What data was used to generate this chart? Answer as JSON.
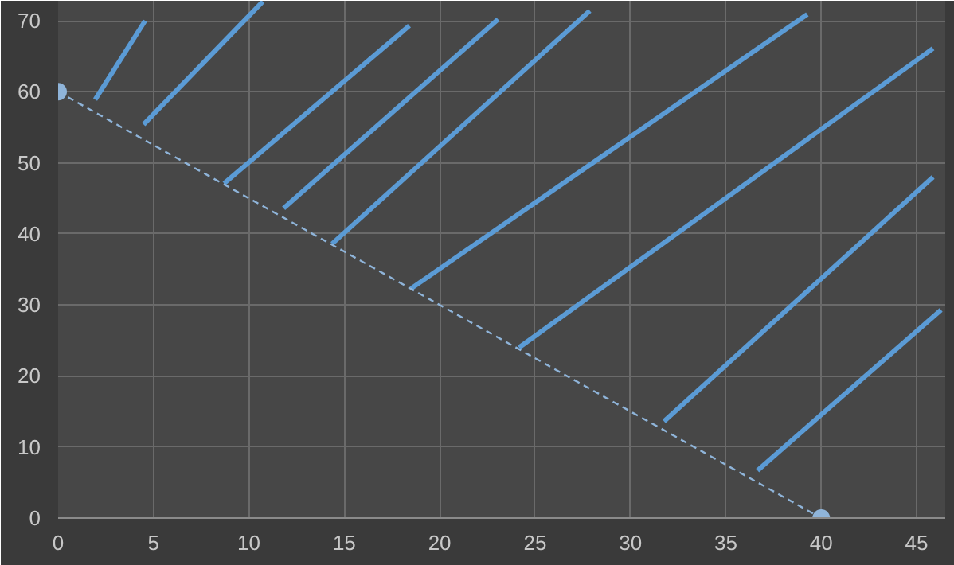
{
  "chart_data": {
    "type": "line",
    "xlim": [
      0,
      46.5
    ],
    "ylim": [
      0,
      72.8
    ],
    "xticks": [
      0,
      5,
      10,
      15,
      20,
      25,
      30,
      35,
      40,
      45
    ],
    "yticks": [
      0,
      10,
      20,
      30,
      40,
      50,
      60,
      70
    ],
    "grid": true,
    "marker": "none",
    "line_style": "solid",
    "series": [
      {
        "color": "#5b9bd5",
        "x": [
          1.94,
          4.56
        ],
        "values": [
          58.9,
          70.0
        ]
      },
      {
        "color": "#5b9bd5",
        "x": [
          4.48,
          10.73
        ],
        "values": [
          55.4,
          72.7
        ]
      },
      {
        "color": "#5b9bd5",
        "x": [
          8.7,
          18.41
        ],
        "values": [
          47.1,
          69.3
        ]
      },
      {
        "color": "#5b9bd5",
        "x": [
          11.82,
          23.06
        ],
        "values": [
          43.6,
          70.2
        ]
      },
      {
        "color": "#5b9bd5",
        "x": [
          14.36,
          27.87
        ],
        "values": [
          38.6,
          71.4
        ]
      },
      {
        "color": "#5b9bd5",
        "x": [
          18.5,
          39.27
        ],
        "values": [
          32.3,
          70.9
        ]
      },
      {
        "color": "#5b9bd5",
        "x": [
          24.16,
          45.86
        ],
        "values": [
          24.0,
          66.1
        ]
      },
      {
        "color": "#5b9bd5",
        "x": [
          31.76,
          45.86
        ],
        "values": [
          13.6,
          48.0
        ]
      },
      {
        "color": "#5b9bd5",
        "x": [
          36.66,
          46.28
        ],
        "values": [
          6.7,
          29.3
        ]
      },
      {
        "color": "#8fb4d9",
        "x": [
          0,
          40
        ],
        "values": [
          60,
          0
        ],
        "line_style": "dashed",
        "marker": "circle"
      }
    ]
  }
}
